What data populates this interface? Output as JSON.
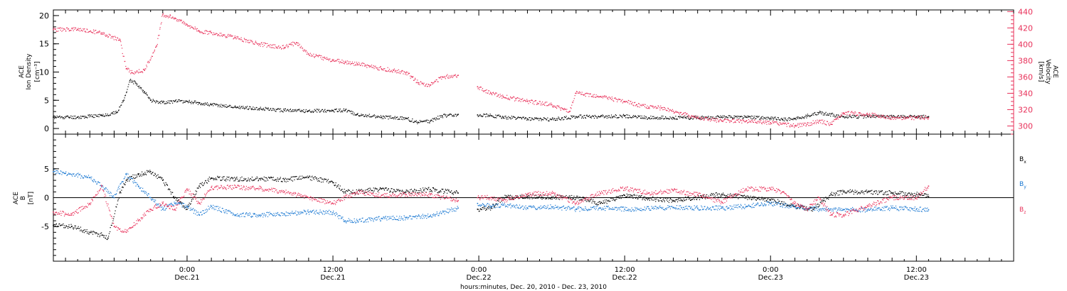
{
  "colors": {
    "black": "#000000",
    "red": "#e8315a",
    "blue": "#1a78d2"
  },
  "xlabel": "hours:minutes, Dec. 20, 2010 - Dec. 23, 2010",
  "chart_data": [
    {
      "type": "scatter",
      "panel": "top",
      "ylabel_left": [
        "ACE",
        "Ion Density",
        "[cm⁻³]"
      ],
      "ylabel_right": [
        "ACE",
        "Velocity",
        "[km/s]"
      ],
      "x_unit": "hours since 2010-12-20 00:00",
      "x_ticks": [
        {
          "hour": 24,
          "time": "0:00",
          "date": "Dec.21"
        },
        {
          "hour": 36,
          "time": "12:00",
          "date": "Dec.21"
        },
        {
          "hour": 48,
          "time": "0:00",
          "date": "Dec.22"
        },
        {
          "hour": 60,
          "time": "12:00",
          "date": "Dec.22"
        },
        {
          "hour": 72,
          "time": "0:00",
          "date": "Dec.23"
        },
        {
          "hour": 84,
          "time": "12:00",
          "date": "Dec.23"
        }
      ],
      "xlim": [
        13,
        92
      ],
      "ylim_left": [
        -1,
        21
      ],
      "yticks_left": [
        0,
        5,
        10,
        15,
        20
      ],
      "ylim_right": [
        290,
        442
      ],
      "yticks_right": [
        300,
        320,
        340,
        360,
        380,
        400,
        420,
        440
      ],
      "data_gap": [
        46.3,
        47.9
      ],
      "series": [
        {
          "name": "Ion Density",
          "color": "black",
          "axis": "left",
          "x": [
            13,
            15,
            17,
            18.2,
            18.8,
            19.3,
            19.8,
            20.5,
            21,
            22,
            23,
            24,
            25,
            26,
            28,
            30,
            32,
            34,
            36,
            37,
            38,
            40,
            42,
            43,
            44,
            45,
            46.3,
            47.9,
            49,
            50,
            52,
            54,
            56,
            58,
            60,
            62,
            64,
            66,
            68,
            70,
            72,
            73,
            74,
            75,
            76,
            78,
            80,
            82,
            84,
            85
          ],
          "y": [
            2,
            2,
            2.3,
            2.8,
            5,
            8.5,
            8,
            6.5,
            5,
            4.6,
            4.8,
            4.8,
            4.5,
            4.2,
            3.8,
            3.5,
            3.2,
            3.1,
            3.2,
            3.2,
            2.5,
            2,
            1.8,
            1.1,
            1.3,
            2.2,
            2.5,
            2.4,
            2.3,
            2,
            1.7,
            1.6,
            2.1,
            2.1,
            2.2,
            1.9,
            1.9,
            1.9,
            2,
            2,
            1.8,
            1.6,
            1.7,
            2.2,
            2.8,
            2.1,
            2.1,
            2.1,
            2.1,
            2.1
          ]
        },
        {
          "name": "Velocity",
          "color": "red",
          "axis": "right",
          "x": [
            13,
            15,
            17,
            18.5,
            19,
            19.5,
            20.5,
            21.5,
            22,
            23,
            24,
            25,
            26,
            28,
            30,
            32,
            33,
            34,
            36,
            37,
            38,
            40,
            41,
            42,
            42.5,
            43,
            44,
            45,
            46.3,
            47.9,
            49,
            50,
            52,
            54,
            55,
            55.5,
            56,
            58,
            60,
            61,
            62,
            63,
            64,
            66,
            68,
            70,
            72,
            74,
            75,
            76,
            77,
            78,
            80,
            82,
            84,
            85
          ],
          "y": [
            418,
            418,
            414,
            405,
            370,
            365,
            368,
            398,
            436,
            432,
            424,
            416,
            414,
            408,
            400,
            396,
            402,
            388,
            380,
            378,
            376,
            370,
            368,
            365,
            360,
            353,
            350,
            360,
            362,
            348,
            340,
            336,
            330,
            326,
            320,
            318,
            340,
            336,
            330,
            326,
            323,
            322,
            318,
            310,
            306,
            306,
            304,
            300,
            302,
            306,
            302,
            316,
            314,
            310,
            310,
            310
          ]
        }
      ]
    },
    {
      "type": "scatter",
      "panel": "bottom",
      "ylabel_left": [
        "ACE",
        "B",
        "[nT]"
      ],
      "ylim": [
        -11,
        11
      ],
      "yticks": [
        -5,
        0,
        5
      ],
      "zero_line": true,
      "legend_position": "right",
      "data_gap": [
        46.3,
        47.9
      ],
      "series": [
        {
          "name": "Bx",
          "label_main": "B",
          "label_sub": "x",
          "color": "black",
          "x": [
            13,
            14.5,
            16,
            17,
            17.5,
            18.5,
            19,
            20,
            21,
            22,
            23,
            24,
            25,
            26,
            28,
            30,
            32,
            34,
            36,
            37,
            38,
            40,
            42,
            44,
            46.3,
            47.9,
            49,
            50,
            52,
            54,
            56,
            58,
            60,
            62,
            64,
            66,
            68,
            70,
            72,
            74,
            75.5,
            77,
            78,
            80,
            82,
            84,
            85
          ],
          "y": [
            -4.8,
            -5,
            -6,
            -6.5,
            -7,
            1,
            3,
            4,
            4.5,
            3,
            0,
            -2,
            2,
            3.4,
            3.2,
            3.3,
            3.1,
            3.5,
            2.6,
            1,
            1,
            1.5,
            1,
            1.4,
            0.8,
            -2,
            -1.8,
            0,
            0.2,
            0.1,
            0,
            -1,
            0.4,
            -0.2,
            -0.5,
            0,
            0.6,
            0,
            -0.4,
            -1.5,
            -2,
            0.5,
            1,
            1,
            0.8,
            0.6,
            0.2
          ]
        },
        {
          "name": "By",
          "label_main": "B",
          "label_sub": "y",
          "color": "blue",
          "x": [
            13,
            14,
            16,
            17,
            18,
            19,
            20,
            21,
            22,
            23,
            24,
            25,
            26,
            28,
            30,
            32,
            34,
            36,
            37,
            38,
            40,
            42,
            44,
            46.3,
            47.9,
            49,
            50,
            52,
            54,
            56,
            58,
            60,
            62,
            64,
            66,
            68,
            70,
            72,
            74,
            76,
            78,
            80,
            82,
            84,
            85
          ],
          "y": [
            4.5,
            4.2,
            3.5,
            2,
            0,
            4,
            2,
            0,
            -2,
            -1,
            -1.5,
            -3,
            -1.5,
            -3,
            -3,
            -2.8,
            -2.5,
            -2.6,
            -4,
            -4,
            -3.6,
            -3.5,
            -3.2,
            -1.8,
            -1,
            -1.5,
            -1.3,
            -1.8,
            -1.6,
            -2,
            -1.8,
            -2,
            -1.9,
            -1.7,
            -1.8,
            -1.8,
            -1.5,
            -1,
            -1.6,
            -2,
            -2.1,
            -2.1,
            -1.8,
            -2,
            -2.1
          ]
        },
        {
          "name": "Bz",
          "label_main": "B",
          "label_sub": "z",
          "color": "red",
          "x": [
            13,
            14.5,
            16,
            17,
            18,
            19,
            20,
            21,
            22,
            23,
            24,
            25,
            26,
            28,
            30,
            32,
            34,
            36,
            38,
            40,
            42,
            44,
            46.3,
            47.9,
            49,
            50,
            52,
            54,
            56,
            58,
            60,
            62,
            64,
            66,
            68,
            70,
            72,
            73,
            74,
            75,
            76,
            77,
            78,
            80,
            82,
            84,
            85
          ],
          "y": [
            -2.5,
            -3,
            -1,
            2,
            -5,
            -6,
            -4,
            -2,
            -1,
            -2,
            1.5,
            -1,
            1.8,
            1.8,
            1.6,
            1,
            0,
            -1,
            1,
            0.4,
            0.5,
            0.5,
            -0.5,
            0,
            0,
            -0.5,
            0.6,
            0.8,
            -1,
            0.8,
            1.6,
            0.8,
            1.2,
            0.5,
            -0.8,
            1.5,
            1.5,
            1,
            -1,
            -2,
            0,
            -3,
            -3,
            -1.5,
            0,
            0,
            2
          ]
        }
      ]
    }
  ]
}
